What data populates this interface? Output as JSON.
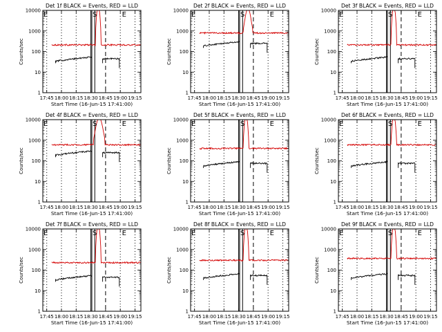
{
  "figure": {
    "panel_count": 9
  },
  "chart_data": [
    {
      "type": "line",
      "title": "Det 1f BLACK = Events, RED = LLD",
      "xlabel": "Start Time (16-Jun-15 17:41:00)",
      "ylabel": "Counts/sec",
      "x_unit": "minutes after 17:41:00",
      "x_tick_labels": [
        "17:45",
        "18:00",
        "18:15",
        "18:30",
        "18:45",
        "19:00",
        "19:15"
      ],
      "y_tick_labels": [
        "1",
        "10",
        "100",
        "1000",
        "10000"
      ],
      "xlim": [
        0,
        100
      ],
      "ylim": [
        1,
        10000
      ],
      "y_scale": "log",
      "grid": false,
      "series": [
        {
          "name": "LLD",
          "color": "#d40000",
          "base": 210,
          "bump_peak": 20000,
          "bump_start": 54,
          "bump_end": 59,
          "segments": [
            [
              9,
              100
            ]
          ]
        },
        {
          "name": "Events",
          "color": "#000000",
          "base": 45,
          "bump_peak": 0,
          "bump_start": 0,
          "bump_end": 0,
          "segments": [
            [
              13,
              50
            ],
            [
              61,
              78
            ]
          ]
        }
      ],
      "vlines": [
        {
          "x": 4,
          "style": "dotted"
        },
        {
          "x": 19,
          "style": "dotted"
        },
        {
          "x": 34,
          "style": "dotted"
        },
        {
          "x": 49,
          "style": "solid"
        },
        {
          "x": 50,
          "style": "solid"
        },
        {
          "x": 53,
          "style": "solid"
        },
        {
          "x": 64,
          "style": "dashed"
        },
        {
          "x": 79,
          "style": "dotted"
        },
        {
          "x": 94,
          "style": "dotted"
        }
      ],
      "annotations": [
        {
          "text": "E",
          "x": 0
        },
        {
          "text": "S",
          "x": 50
        },
        {
          "text": "E",
          "x": 80
        }
      ]
    },
    {
      "type": "line",
      "title": "Det 2f BLACK = Events, RED = LLD",
      "xlabel": "Start Time (16-Jun-15 17:41:00)",
      "ylabel": "Counts/sec",
      "x_unit": "minutes after 17:41:00",
      "x_tick_labels": [
        "17:45",
        "18:00",
        "18:15",
        "18:30",
        "18:45",
        "19:00",
        "19:15"
      ],
      "y_tick_labels": [
        "1",
        "10",
        "100",
        "1000",
        "10000"
      ],
      "xlim": [
        0,
        100
      ],
      "ylim": [
        1,
        10000
      ],
      "y_scale": "log",
      "grid": false,
      "series": [
        {
          "name": "LLD",
          "color": "#d40000",
          "base": 800,
          "bump_peak": 12000,
          "bump_start": 54,
          "bump_end": 63,
          "segments": [
            [
              9,
              100
            ]
          ]
        },
        {
          "name": "Events",
          "color": "#000000",
          "base": 250,
          "bump_peak": 0,
          "bump_start": 0,
          "bump_end": 0,
          "segments": [
            [
              13,
              50
            ],
            [
              61,
              78
            ]
          ]
        }
      ],
      "vlines": [
        {
          "x": 4,
          "style": "dotted"
        },
        {
          "x": 19,
          "style": "dotted"
        },
        {
          "x": 34,
          "style": "dotted"
        },
        {
          "x": 49,
          "style": "solid"
        },
        {
          "x": 50,
          "style": "solid"
        },
        {
          "x": 53,
          "style": "solid"
        },
        {
          "x": 64,
          "style": "dashed"
        },
        {
          "x": 79,
          "style": "dotted"
        },
        {
          "x": 94,
          "style": "dotted"
        }
      ],
      "annotations": [
        {
          "text": "E",
          "x": 0
        },
        {
          "text": "S",
          "x": 50
        },
        {
          "text": "E",
          "x": 80
        }
      ]
    },
    {
      "type": "line",
      "title": "Det 3f BLACK = Events, RED = LLD",
      "xlabel": "Start Time (16-Jun-15 17:41:00)",
      "ylabel": "Counts/sec",
      "x_unit": "minutes after 17:41:00",
      "x_tick_labels": [
        "17:45",
        "18:00",
        "18:15",
        "18:30",
        "18:45",
        "19:00",
        "19:15"
      ],
      "y_tick_labels": [
        "1",
        "10",
        "100",
        "1000",
        "10000"
      ],
      "xlim": [
        0,
        100
      ],
      "ylim": [
        1,
        10000
      ],
      "y_scale": "log",
      "grid": false,
      "series": [
        {
          "name": "LLD",
          "color": "#d40000",
          "base": 210,
          "bump_peak": 20000,
          "bump_start": 54,
          "bump_end": 59,
          "segments": [
            [
              9,
              100
            ]
          ]
        },
        {
          "name": "Events",
          "color": "#000000",
          "base": 45,
          "bump_peak": 0,
          "bump_start": 0,
          "bump_end": 0,
          "segments": [
            [
              13,
              50
            ],
            [
              61,
              78
            ]
          ]
        }
      ],
      "vlines": [
        {
          "x": 4,
          "style": "dotted"
        },
        {
          "x": 19,
          "style": "dotted"
        },
        {
          "x": 34,
          "style": "dotted"
        },
        {
          "x": 49,
          "style": "solid"
        },
        {
          "x": 50,
          "style": "solid"
        },
        {
          "x": 53,
          "style": "solid"
        },
        {
          "x": 64,
          "style": "dashed"
        },
        {
          "x": 79,
          "style": "dotted"
        },
        {
          "x": 94,
          "style": "dotted"
        }
      ],
      "annotations": [
        {
          "text": "E",
          "x": 0
        },
        {
          "text": "S",
          "x": 50
        },
        {
          "text": "E",
          "x": 80
        }
      ]
    },
    {
      "type": "line",
      "title": "Det 4f BLACK = Events, RED = LLD",
      "xlabel": "Start Time (16-Jun-15 17:41:00)",
      "ylabel": "Counts/sec",
      "x_unit": "minutes after 17:41:00",
      "x_tick_labels": [
        "17:45",
        "18:00",
        "18:15",
        "18:30",
        "18:45",
        "19:00",
        "19:15"
      ],
      "y_tick_labels": [
        "1",
        "10",
        "100",
        "1000",
        "10000"
      ],
      "xlim": [
        0,
        100
      ],
      "ylim": [
        1,
        10000
      ],
      "y_scale": "log",
      "grid": false,
      "series": [
        {
          "name": "LLD",
          "color": "#d40000",
          "base": 600,
          "bump_peak": 12000,
          "bump_start": 52,
          "bump_end": 63,
          "segments": [
            [
              9,
              100
            ]
          ]
        },
        {
          "name": "Events",
          "color": "#000000",
          "base": 250,
          "bump_peak": 0,
          "bump_start": 0,
          "bump_end": 0,
          "segments": [
            [
              13,
              50
            ],
            [
              61,
              78
            ]
          ]
        }
      ],
      "vlines": [
        {
          "x": 4,
          "style": "dotted"
        },
        {
          "x": 19,
          "style": "dotted"
        },
        {
          "x": 34,
          "style": "dotted"
        },
        {
          "x": 49,
          "style": "solid"
        },
        {
          "x": 50,
          "style": "solid"
        },
        {
          "x": 53,
          "style": "solid"
        },
        {
          "x": 64,
          "style": "dashed"
        },
        {
          "x": 79,
          "style": "dotted"
        },
        {
          "x": 94,
          "style": "dotted"
        }
      ],
      "annotations": [
        {
          "text": "E",
          "x": 0
        },
        {
          "text": "S",
          "x": 50
        },
        {
          "text": "E",
          "x": 80
        }
      ]
    },
    {
      "type": "line",
      "title": "Det 5f BLACK = Events, RED = LLD",
      "xlabel": "Start Time (16-Jun-15 17:41:00)",
      "ylabel": "Counts/sec",
      "x_unit": "minutes after 17:41:00",
      "x_tick_labels": [
        "17:45",
        "18:00",
        "18:15",
        "18:30",
        "18:45",
        "19:00",
        "19:15"
      ],
      "y_tick_labels": [
        "1",
        "10",
        "100",
        "1000",
        "10000"
      ],
      "xlim": [
        0,
        100
      ],
      "ylim": [
        1,
        10000
      ],
      "y_scale": "log",
      "grid": false,
      "series": [
        {
          "name": "LLD",
          "color": "#d40000",
          "base": 400,
          "bump_peak": 20000,
          "bump_start": 54,
          "bump_end": 59,
          "segments": [
            [
              9,
              100
            ]
          ]
        },
        {
          "name": "Events",
          "color": "#000000",
          "base": 75,
          "bump_peak": 0,
          "bump_start": 0,
          "bump_end": 0,
          "segments": [
            [
              13,
              50
            ],
            [
              61,
              78
            ]
          ]
        }
      ],
      "vlines": [
        {
          "x": 4,
          "style": "dotted"
        },
        {
          "x": 19,
          "style": "dotted"
        },
        {
          "x": 34,
          "style": "dotted"
        },
        {
          "x": 49,
          "style": "solid"
        },
        {
          "x": 50,
          "style": "solid"
        },
        {
          "x": 53,
          "style": "solid"
        },
        {
          "x": 64,
          "style": "dashed"
        },
        {
          "x": 79,
          "style": "dotted"
        },
        {
          "x": 94,
          "style": "dotted"
        }
      ],
      "annotations": [
        {
          "text": "E",
          "x": 0
        },
        {
          "text": "S",
          "x": 50
        },
        {
          "text": "E",
          "x": 80
        }
      ]
    },
    {
      "type": "line",
      "title": "Det 6f BLACK = Events, RED = LLD",
      "xlabel": "Start Time (16-Jun-15 17:41:00)",
      "ylabel": "Counts/sec",
      "x_unit": "minutes after 17:41:00",
      "x_tick_labels": [
        "17:45",
        "18:00",
        "18:15",
        "18:30",
        "18:45",
        "19:00",
        "19:15"
      ],
      "y_tick_labels": [
        "1",
        "10",
        "100",
        "1000",
        "10000"
      ],
      "xlim": [
        0,
        100
      ],
      "ylim": [
        1,
        10000
      ],
      "y_scale": "log",
      "grid": false,
      "series": [
        {
          "name": "LLD",
          "color": "#d40000",
          "base": 600,
          "bump_peak": 20000,
          "bump_start": 54,
          "bump_end": 59,
          "segments": [
            [
              9,
              100
            ]
          ]
        },
        {
          "name": "Events",
          "color": "#000000",
          "base": 75,
          "bump_peak": 0,
          "bump_start": 0,
          "bump_end": 0,
          "segments": [
            [
              13,
              50
            ],
            [
              61,
              78
            ]
          ]
        }
      ],
      "vlines": [
        {
          "x": 4,
          "style": "dotted"
        },
        {
          "x": 19,
          "style": "dotted"
        },
        {
          "x": 34,
          "style": "dotted"
        },
        {
          "x": 49,
          "style": "solid"
        },
        {
          "x": 50,
          "style": "solid"
        },
        {
          "x": 53,
          "style": "solid"
        },
        {
          "x": 64,
          "style": "dashed"
        },
        {
          "x": 79,
          "style": "dotted"
        },
        {
          "x": 94,
          "style": "dotted"
        }
      ],
      "annotations": [
        {
          "text": "E",
          "x": 0
        },
        {
          "text": "S",
          "x": 50
        },
        {
          "text": "E",
          "x": 80
        }
      ]
    },
    {
      "type": "line",
      "title": "Det 7f BLACK = Events, RED = LLD",
      "xlabel": "Start Time (16-Jun-15 17:41:00)",
      "ylabel": "Counts/sec",
      "x_unit": "minutes after 17:41:00",
      "x_tick_labels": [
        "17:45",
        "18:00",
        "18:15",
        "18:30",
        "18:45",
        "19:00",
        "19:15"
      ],
      "y_tick_labels": [
        "1",
        "10",
        "100",
        "1000",
        "10000"
      ],
      "xlim": [
        0,
        100
      ],
      "ylim": [
        1,
        10000
      ],
      "y_scale": "log",
      "grid": false,
      "series": [
        {
          "name": "LLD",
          "color": "#d40000",
          "base": 230,
          "bump_peak": 20000,
          "bump_start": 54,
          "bump_end": 59,
          "segments": [
            [
              9,
              100
            ]
          ]
        },
        {
          "name": "Events",
          "color": "#000000",
          "base": 45,
          "bump_peak": 0,
          "bump_start": 0,
          "bump_end": 0,
          "segments": [
            [
              13,
              50
            ],
            [
              61,
              78
            ]
          ]
        }
      ],
      "vlines": [
        {
          "x": 4,
          "style": "dotted"
        },
        {
          "x": 19,
          "style": "dotted"
        },
        {
          "x": 34,
          "style": "dotted"
        },
        {
          "x": 49,
          "style": "solid"
        },
        {
          "x": 50,
          "style": "solid"
        },
        {
          "x": 53,
          "style": "solid"
        },
        {
          "x": 64,
          "style": "dashed"
        },
        {
          "x": 79,
          "style": "dotted"
        },
        {
          "x": 94,
          "style": "dotted"
        }
      ],
      "annotations": [
        {
          "text": "E",
          "x": 0
        },
        {
          "text": "S",
          "x": 50
        },
        {
          "text": "E",
          "x": 80
        }
      ]
    },
    {
      "type": "line",
      "title": "Det 8f BLACK = Events, RED = LLD",
      "xlabel": "Start Time (16-Jun-15 17:41:00)",
      "ylabel": "Counts/sec",
      "x_unit": "minutes after 17:41:00",
      "x_tick_labels": [
        "17:45",
        "18:00",
        "18:15",
        "18:30",
        "18:45",
        "19:00",
        "19:15"
      ],
      "y_tick_labels": [
        "1",
        "10",
        "100",
        "1000",
        "10000"
      ],
      "xlim": [
        0,
        100
      ],
      "ylim": [
        1,
        10000
      ],
      "y_scale": "log",
      "grid": false,
      "series": [
        {
          "name": "LLD",
          "color": "#d40000",
          "base": 300,
          "bump_peak": 20000,
          "bump_start": 54,
          "bump_end": 59,
          "segments": [
            [
              9,
              100
            ]
          ]
        },
        {
          "name": "Events",
          "color": "#000000",
          "base": 55,
          "bump_peak": 0,
          "bump_start": 0,
          "bump_end": 0,
          "segments": [
            [
              13,
              50
            ],
            [
              61,
              78
            ]
          ]
        }
      ],
      "vlines": [
        {
          "x": 4,
          "style": "dotted"
        },
        {
          "x": 19,
          "style": "dotted"
        },
        {
          "x": 34,
          "style": "dotted"
        },
        {
          "x": 49,
          "style": "solid"
        },
        {
          "x": 50,
          "style": "solid"
        },
        {
          "x": 53,
          "style": "solid"
        },
        {
          "x": 64,
          "style": "dashed"
        },
        {
          "x": 79,
          "style": "dotted"
        },
        {
          "x": 94,
          "style": "dotted"
        }
      ],
      "annotations": [
        {
          "text": "E",
          "x": 0
        },
        {
          "text": "S",
          "x": 50
        },
        {
          "text": "E",
          "x": 80
        }
      ]
    },
    {
      "type": "line",
      "title": "Det 9f BLACK = Events, RED = LLD",
      "xlabel": "Start Time (16-Jun-15 17:41:00)",
      "ylabel": "Counts/sec",
      "x_unit": "minutes after 17:41:00",
      "x_tick_labels": [
        "17:45",
        "18:00",
        "18:15",
        "18:30",
        "18:45",
        "19:00",
        "19:15"
      ],
      "y_tick_labels": [
        "1",
        "10",
        "100",
        "1000",
        "10000"
      ],
      "xlim": [
        0,
        100
      ],
      "ylim": [
        1,
        10000
      ],
      "y_scale": "log",
      "grid": false,
      "series": [
        {
          "name": "LLD",
          "color": "#d40000",
          "base": 370,
          "bump_peak": 20000,
          "bump_start": 54,
          "bump_end": 59,
          "segments": [
            [
              9,
              100
            ]
          ]
        },
        {
          "name": "Events",
          "color": "#000000",
          "base": 55,
          "bump_peak": 0,
          "bump_start": 0,
          "bump_end": 0,
          "segments": [
            [
              13,
              50
            ],
            [
              61,
              78
            ]
          ]
        }
      ],
      "vlines": [
        {
          "x": 4,
          "style": "dotted"
        },
        {
          "x": 19,
          "style": "dotted"
        },
        {
          "x": 34,
          "style": "dotted"
        },
        {
          "x": 49,
          "style": "solid"
        },
        {
          "x": 50,
          "style": "solid"
        },
        {
          "x": 53,
          "style": "solid"
        },
        {
          "x": 64,
          "style": "dashed"
        },
        {
          "x": 79,
          "style": "dotted"
        },
        {
          "x": 94,
          "style": "dotted"
        }
      ],
      "annotations": [
        {
          "text": "E",
          "x": 0
        },
        {
          "text": "S",
          "x": 50
        },
        {
          "text": "E",
          "x": 80
        }
      ]
    }
  ]
}
